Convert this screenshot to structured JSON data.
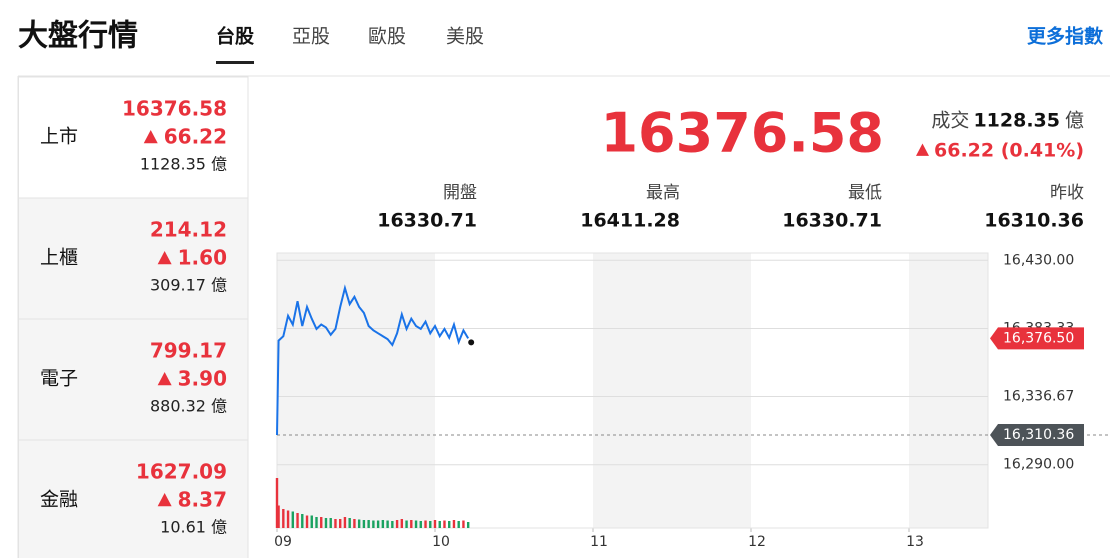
{
  "header": {
    "title": "大盤行情",
    "tabs": [
      "台股",
      "亞股",
      "歐股",
      "美股"
    ],
    "more_link": "更多指數"
  },
  "sidebar": [
    {
      "name": "上市",
      "price": "16376.58",
      "change": "66.22",
      "volume": "1128.35",
      "unit": "億"
    },
    {
      "name": "上櫃",
      "price": "214.12",
      "change": "1.60",
      "volume": "309.17",
      "unit": "億"
    },
    {
      "name": "電子",
      "price": "799.17",
      "change": "3.90",
      "volume": "880.32",
      "unit": "億"
    },
    {
      "name": "金融",
      "price": "1627.09",
      "change": "8.37",
      "volume": "10.61",
      "unit": "億"
    }
  ],
  "quote": {
    "price": "16376.58",
    "volume_label": "成交",
    "volume": "1128.35",
    "unit": "億",
    "change": "66.22 (0.41%)",
    "stats": [
      {
        "label": "開盤",
        "value": "16330.71"
      },
      {
        "label": "最高",
        "value": "16411.28"
      },
      {
        "label": "最低",
        "value": "16330.71"
      },
      {
        "label": "昨收",
        "value": "16310.36"
      }
    ]
  },
  "chart_data": {
    "type": "line",
    "x": [
      9.0,
      9.01,
      9.04,
      9.07,
      9.1,
      9.13,
      9.16,
      9.19,
      9.22,
      9.25,
      9.28,
      9.31,
      9.34,
      9.37,
      9.4,
      9.43,
      9.46,
      9.49,
      9.52,
      9.55,
      9.58,
      9.61,
      9.64,
      9.67,
      9.7,
      9.73,
      9.76,
      9.79,
      9.82,
      9.85,
      9.88,
      9.91,
      9.94,
      9.97,
      10.0,
      10.03,
      10.06,
      10.09,
      10.12,
      10.15,
      10.18,
      10.21
    ],
    "values": [
      16310.36,
      16375,
      16378,
      16392,
      16386,
      16402,
      16385,
      16398,
      16390,
      16383,
      16386,
      16384,
      16379,
      16383,
      16398,
      16411,
      16400,
      16405,
      16398,
      16394,
      16385,
      16382,
      16380,
      16378,
      16376,
      16372,
      16380,
      16393,
      16383,
      16390,
      16385,
      16383,
      16388,
      16380,
      16385,
      16378,
      16383,
      16377,
      16386,
      16374,
      16382,
      16376.5
    ],
    "color": "#1a73e8",
    "xlim": [
      9,
      13.5
    ],
    "xticks": [
      {
        "value": 9,
        "label": "09"
      },
      {
        "value": 10,
        "label": "10"
      },
      {
        "value": 11,
        "label": "11"
      },
      {
        "value": 12,
        "label": "12"
      },
      {
        "value": 13,
        "label": "13"
      }
    ],
    "ylim": [
      16285,
      16435
    ],
    "yticks": [
      {
        "value": 16290,
        "label": "16,290.00"
      },
      {
        "value": 16336.67,
        "label": "16,336.67"
      },
      {
        "value": 16383.33,
        "label": "16,383.33"
      },
      {
        "value": 16430,
        "label": "16,430.00"
      }
    ],
    "grid": true,
    "last_price": {
      "value": 16376.5,
      "label": "16,376.50"
    },
    "prev_close": {
      "value": 16310.36,
      "label": "16,310.36"
    },
    "volume": {
      "values": [
        100,
        45,
        38,
        35,
        33,
        30,
        28,
        25,
        25,
        22,
        22,
        20,
        20,
        18,
        18,
        22,
        20,
        18,
        17,
        16,
        16,
        15,
        15,
        16,
        15,
        14,
        16,
        18,
        15,
        16,
        15,
        14,
        15,
        14,
        16,
        14,
        15,
        14,
        16,
        14,
        15,
        12
      ],
      "ylim": [
        0,
        100
      ],
      "up_color": "#e8323c",
      "down_color": "#1aa260"
    }
  }
}
